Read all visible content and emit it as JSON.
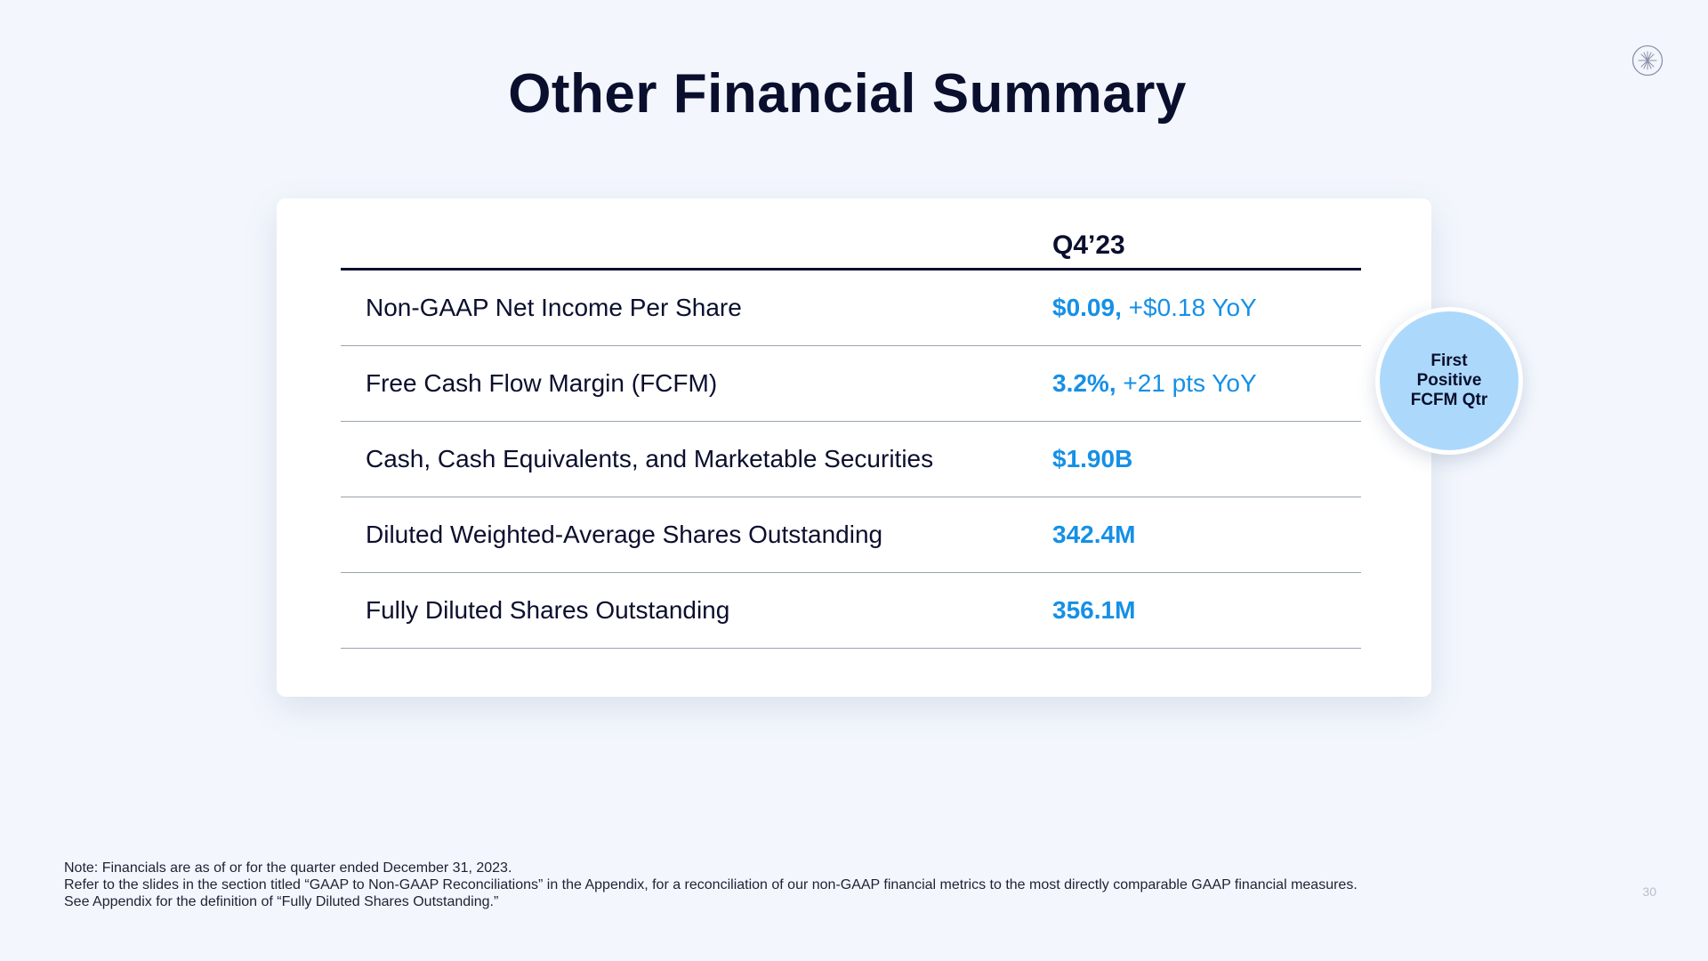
{
  "slide": {
    "title": "Other Financial Summary",
    "page_number": "30"
  },
  "table": {
    "column_header": "Q4’23",
    "rows": [
      {
        "label": "Non-GAAP Net Income Per Share",
        "value": "$0.09,",
        "extra": " +$0.18 YoY"
      },
      {
        "label": "Free Cash Flow Margin (FCFM)",
        "value": "3.2%,",
        "extra": " +21 pts YoY"
      },
      {
        "label": "Cash, Cash Equivalents, and Marketable Securities",
        "value": "$1.90B",
        "extra": ""
      },
      {
        "label": "Diluted Weighted-Average Shares Outstanding",
        "value": "342.4M",
        "extra": ""
      },
      {
        "label": "Fully Diluted Shares Outstanding",
        "value": "356.1M",
        "extra": ""
      }
    ]
  },
  "badge": {
    "line1": "First",
    "line2": "Positive",
    "line3": "FCFM Qtr"
  },
  "footnotes": [
    "Note: Financials are as of or for the quarter ended December 31, 2023.",
    "Refer to the slides in the section titled “GAAP to Non-GAAP Reconciliations” in the Appendix, for a reconciliation of our non-GAAP financial metrics to the most directly comparable GAAP financial measures.",
    "See Appendix for the definition of  “Fully Diluted Shares Outstanding.”"
  ],
  "colors": {
    "background": "#f3f7fd",
    "text_dark": "#0b0f2e",
    "accent_blue": "#1590e6",
    "badge_fill": "#acd9fb"
  },
  "icons": {
    "logo": "starburst-logo-icon"
  }
}
